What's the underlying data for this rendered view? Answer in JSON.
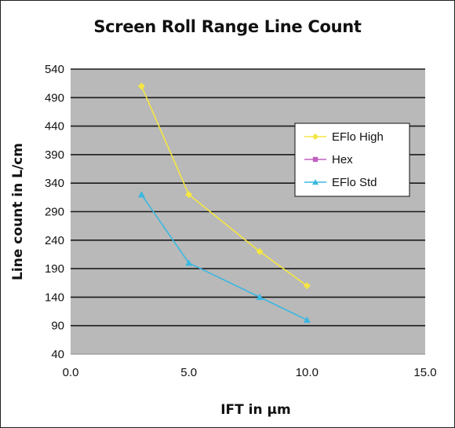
{
  "chart_data": {
    "type": "line",
    "title": "Screen Roll Range Line Count",
    "xlabel": "IFT in µm",
    "ylabel": "Line count in L/cm",
    "xlim": [
      0,
      15
    ],
    "ylim": [
      40,
      540
    ],
    "x_ticks": [
      "0.0",
      "5.0",
      "10.0",
      "15.0"
    ],
    "y_ticks": [
      "540",
      "490",
      "440",
      "390",
      "340",
      "290",
      "240",
      "190",
      "140",
      "90",
      "40"
    ],
    "grid": "horizontal",
    "legend_position": "right",
    "series": [
      {
        "name": "EFlo High",
        "color": "#f5e642",
        "marker": "diamond",
        "x": [
          3,
          5,
          8,
          10
        ],
        "y": [
          510,
          320,
          220,
          160
        ]
      },
      {
        "name": "Hex",
        "color": "#c060c0",
        "marker": "square",
        "x": [],
        "y": []
      },
      {
        "name": "EFlo Std",
        "color": "#3cb8e0",
        "marker": "triangle",
        "x": [
          3,
          5,
          8,
          10
        ],
        "y": [
          320,
          200,
          140,
          100
        ]
      }
    ]
  }
}
